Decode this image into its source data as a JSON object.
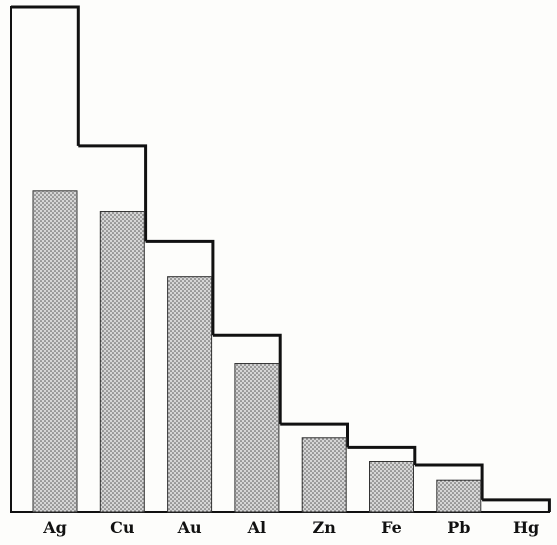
{
  "chart_data": {
    "type": "bar",
    "categories": [
      "Ag",
      "Cu",
      "Au",
      "Al",
      "Zn",
      "Fe",
      "Pb",
      "Hg"
    ],
    "series": [
      {
        "values": [
          100,
          72.5,
          53.6,
          35.0,
          17.4,
          12.8,
          9.3,
          2.4
        ]
      },
      {
        "values": [
          63.6,
          59.5,
          46.6,
          29.4,
          14.7,
          10.0,
          6.3,
          0
        ]
      }
    ],
    "ylim": [
      0,
      100
    ],
    "xlabel": "",
    "ylabel": "",
    "title": "",
    "grid": false,
    "legend": "none",
    "colors": {
      "outline": "#111111",
      "stipple_dot": "#555555",
      "background": "#fdfdfb"
    }
  }
}
